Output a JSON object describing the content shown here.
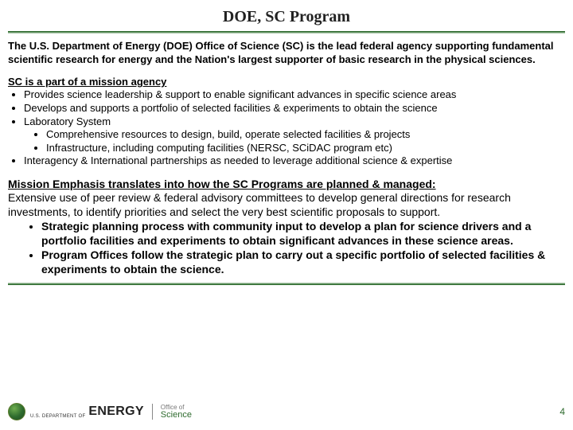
{
  "title": "DOE, SC Program",
  "lead": "The U.S. Department of Energy (DOE) Office of Science (SC) is the lead federal agency supporting fundamental scientific research for energy and the Nation's largest supporter of basic research in the physical sciences.",
  "section1": {
    "heading": "SC is a part of a mission agency",
    "b1": "Provides science leadership & support to enable significant advances in specific science areas",
    "b2": "Develops and supports a portfolio of selected facilities & experiments to obtain the science",
    "b3": "Laboratory System",
    "b3a": "Comprehensive resources to design, build, operate selected facilities & projects",
    "b3b": "Infrastructure, including computing facilities (NERSC, SCiDAC program etc)",
    "b4": "Interagency & International partnerships as needed to leverage additional science & expertise"
  },
  "section2": {
    "heading": "Mission Emphasis translates into how the SC Programs are planned & managed:",
    "para": "Extensive use of peer review & federal advisory committees to develop general directions for research investments, to identify priorities and select the very best scientific proposals to support.",
    "b1": "Strategic planning process with community input to develop a plan for science drivers and a portfolio facilities and experiments to obtain significant advances in these science areas.",
    "b2": "Program Offices follow the strategic plan to carry out a specific portfolio of selected facilities & experiments to obtain the science."
  },
  "footer": {
    "dept1": "U.S. DEPARTMENT OF",
    "energy": "ENERGY",
    "office1": "Office of",
    "office2": "Science",
    "page": "4"
  },
  "colors": {
    "accent": "#2e6b2e",
    "bg": "#ffffff"
  }
}
